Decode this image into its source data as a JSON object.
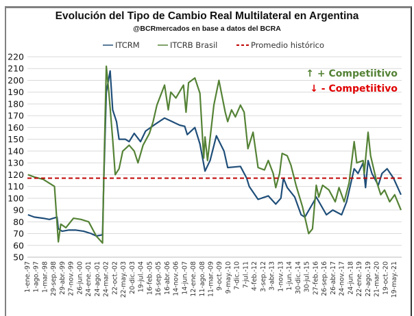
{
  "chart_data": {
    "type": "line",
    "title": "Evolución del Tipo de Cambio Real Multilateral en Argentina",
    "subtitle": "@BCRmercados en base a datos del BCRA",
    "ylim": [
      50,
      220
    ],
    "yticks": [
      50,
      60,
      70,
      80,
      90,
      100,
      110,
      120,
      130,
      140,
      150,
      160,
      170,
      180,
      190,
      200,
      210,
      220
    ],
    "xlim": [
      "1997-01-01",
      "2021-08-31"
    ],
    "grid": true,
    "legend_position": "top",
    "xticks": [
      "1-ene.-97",
      "1-ago.-97",
      "1-mar.-98",
      "29-sep.-98",
      "29-abr.-99",
      "27-nov.-99",
      "26-jun.-00",
      "24-ene.-01",
      "24-ago.-01",
      "24-mar.-02",
      "22-oct.-02",
      "22-may.-03",
      "20-dic.-03",
      "19-jul.-04",
      "16-feb.-05",
      "16-sep.-05",
      "16-abr.-06",
      "14-nov.-06",
      "14-jun.-07",
      "12-ene.-08",
      "11-ago.-08",
      "11-mar.-09",
      "9-oct.-09",
      "9-may.-10",
      "7-dic.-10",
      "7-jul.-11",
      "4-feb.-12",
      "3-sep.-12",
      "3-abr.-13",
      "1-nov.-13",
      "1-jun.-14",
      "30-dic.-14",
      "30-jul.-15",
      "27-feb.-16",
      "26-sep.-16",
      "26-abr.-17",
      "24-nov.-17",
      "24-jun.-18",
      "22-ene.-19",
      "22-ago.-19",
      "21-mar.-20",
      "19-oct.-20",
      "19-may.-21"
    ],
    "series": [
      {
        "name": "ITCRM",
        "color": "#1f4e79",
        "points": [
          [
            "1997-01",
            86
          ],
          [
            "1997-06",
            84
          ],
          [
            "1998-01",
            83
          ],
          [
            "1998-06",
            82
          ],
          [
            "1998-12",
            84
          ],
          [
            "1999-01",
            74
          ],
          [
            "1999-04",
            72
          ],
          [
            "1999-09",
            73
          ],
          [
            "2000-03",
            73
          ],
          [
            "2000-09",
            72
          ],
          [
            "2001-03",
            70
          ],
          [
            "2001-07",
            68
          ],
          [
            "2001-12",
            69
          ],
          [
            "2002-01",
            117
          ],
          [
            "2002-03",
            190
          ],
          [
            "2002-06",
            208
          ],
          [
            "2002-08",
            175
          ],
          [
            "2002-11",
            165
          ],
          [
            "2003-01",
            150
          ],
          [
            "2003-06",
            150
          ],
          [
            "2003-09",
            148
          ],
          [
            "2004-01",
            155
          ],
          [
            "2004-06",
            148
          ],
          [
            "2004-10",
            157
          ],
          [
            "2005-02",
            160
          ],
          [
            "2005-06",
            163
          ],
          [
            "2006-01",
            168
          ],
          [
            "2006-07",
            165
          ],
          [
            "2007-01",
            162
          ],
          [
            "2007-05",
            161
          ],
          [
            "2007-07",
            154
          ],
          [
            "2008-01",
            160
          ],
          [
            "2008-05",
            146
          ],
          [
            "2008-09",
            123
          ],
          [
            "2009-01",
            132
          ],
          [
            "2009-06",
            153
          ],
          [
            "2009-12",
            140
          ],
          [
            "2010-03",
            126
          ],
          [
            "2011-01",
            127
          ],
          [
            "2011-06",
            117
          ],
          [
            "2011-08",
            110
          ],
          [
            "2012-03",
            99
          ],
          [
            "2012-11",
            102
          ],
          [
            "2013-05",
            95
          ],
          [
            "2013-09",
            100
          ],
          [
            "2013-11",
            117
          ],
          [
            "2014-02",
            109
          ],
          [
            "2014-08",
            101
          ],
          [
            "2015-01",
            86
          ],
          [
            "2015-04",
            84
          ],
          [
            "2015-11",
            97
          ],
          [
            "2016-01",
            101
          ],
          [
            "2016-09",
            86
          ],
          [
            "2017-02",
            90
          ],
          [
            "2017-09",
            86
          ],
          [
            "2018-01",
            97
          ],
          [
            "2018-04",
            111
          ],
          [
            "2018-07",
            125
          ],
          [
            "2018-10",
            121
          ],
          [
            "2019-02",
            130
          ],
          [
            "2019-04",
            109
          ],
          [
            "2019-06",
            132
          ],
          [
            "2019-09",
            121
          ],
          [
            "2020-02",
            111
          ],
          [
            "2020-05",
            121
          ],
          [
            "2020-09",
            125
          ],
          [
            "2021-02",
            117
          ],
          [
            "2021-08",
            103
          ]
        ]
      },
      {
        "name": "ITCRB Brasil",
        "color": "#548235",
        "points": [
          [
            "1997-01",
            120
          ],
          [
            "1997-06",
            118
          ],
          [
            "1998-01",
            116
          ],
          [
            "1998-10",
            110
          ],
          [
            "1999-01",
            63
          ],
          [
            "1999-03",
            78
          ],
          [
            "1999-07",
            75
          ],
          [
            "2000-01",
            83
          ],
          [
            "2000-07",
            82
          ],
          [
            "2001-01",
            80
          ],
          [
            "2001-07",
            68
          ],
          [
            "2001-12",
            62
          ],
          [
            "2002-01",
            120
          ],
          [
            "2002-03",
            212
          ],
          [
            "2002-05",
            190
          ],
          [
            "2002-08",
            150
          ],
          [
            "2002-10",
            120
          ],
          [
            "2003-01",
            125
          ],
          [
            "2003-04",
            140
          ],
          [
            "2003-09",
            145
          ],
          [
            "2004-01",
            140
          ],
          [
            "2004-04",
            130
          ],
          [
            "2004-08",
            145
          ],
          [
            "2005-01",
            155
          ],
          [
            "2005-04",
            165
          ],
          [
            "2005-07",
            179
          ],
          [
            "2006-01",
            196
          ],
          [
            "2006-04",
            175
          ],
          [
            "2006-06",
            190
          ],
          [
            "2006-10",
            185
          ],
          [
            "2007-04",
            196
          ],
          [
            "2007-06",
            173
          ],
          [
            "2007-08",
            198
          ],
          [
            "2008-01",
            202
          ],
          [
            "2008-05",
            189
          ],
          [
            "2008-08",
            134
          ],
          [
            "2008-09",
            152
          ],
          [
            "2008-11",
            132
          ],
          [
            "2009-04",
            179
          ],
          [
            "2009-08",
            200
          ],
          [
            "2010-01",
            173
          ],
          [
            "2010-03",
            165
          ],
          [
            "2010-06",
            175
          ],
          [
            "2010-09",
            169
          ],
          [
            "2011-01",
            179
          ],
          [
            "2011-04",
            173
          ],
          [
            "2011-07",
            142
          ],
          [
            "2011-11",
            156
          ],
          [
            "2012-03",
            126
          ],
          [
            "2012-08",
            124
          ],
          [
            "2012-11",
            132
          ],
          [
            "2013-03",
            121
          ],
          [
            "2013-05",
            109
          ],
          [
            "2013-08",
            121
          ],
          [
            "2013-10",
            138
          ],
          [
            "2014-02",
            136
          ],
          [
            "2014-05",
            128
          ],
          [
            "2014-09",
            111
          ],
          [
            "2015-02",
            93
          ],
          [
            "2015-07",
            70
          ],
          [
            "2015-10",
            74
          ],
          [
            "2016-01",
            111
          ],
          [
            "2016-03",
            101
          ],
          [
            "2016-06",
            111
          ],
          [
            "2016-11",
            107
          ],
          [
            "2017-04",
            97
          ],
          [
            "2017-07",
            109
          ],
          [
            "2017-11",
            97
          ],
          [
            "2018-03",
            113
          ],
          [
            "2018-07",
            148
          ],
          [
            "2018-09",
            130
          ],
          [
            "2019-02",
            132
          ],
          [
            "2019-03",
            121
          ],
          [
            "2019-06",
            156
          ],
          [
            "2019-08",
            136
          ],
          [
            "2020-01",
            113
          ],
          [
            "2020-04",
            103
          ],
          [
            "2020-07",
            107
          ],
          [
            "2020-11",
            97
          ],
          [
            "2021-03",
            103
          ],
          [
            "2021-08",
            90
          ]
        ]
      },
      {
        "name": "Promedio histórico",
        "color": "#c00000",
        "dashed": true,
        "value": 117
      }
    ],
    "annotations": [
      {
        "text": "↑ + Competiitivo",
        "color": "#548235"
      },
      {
        "text": "↓ -  Competiitivo",
        "color": "#e00000"
      }
    ]
  }
}
